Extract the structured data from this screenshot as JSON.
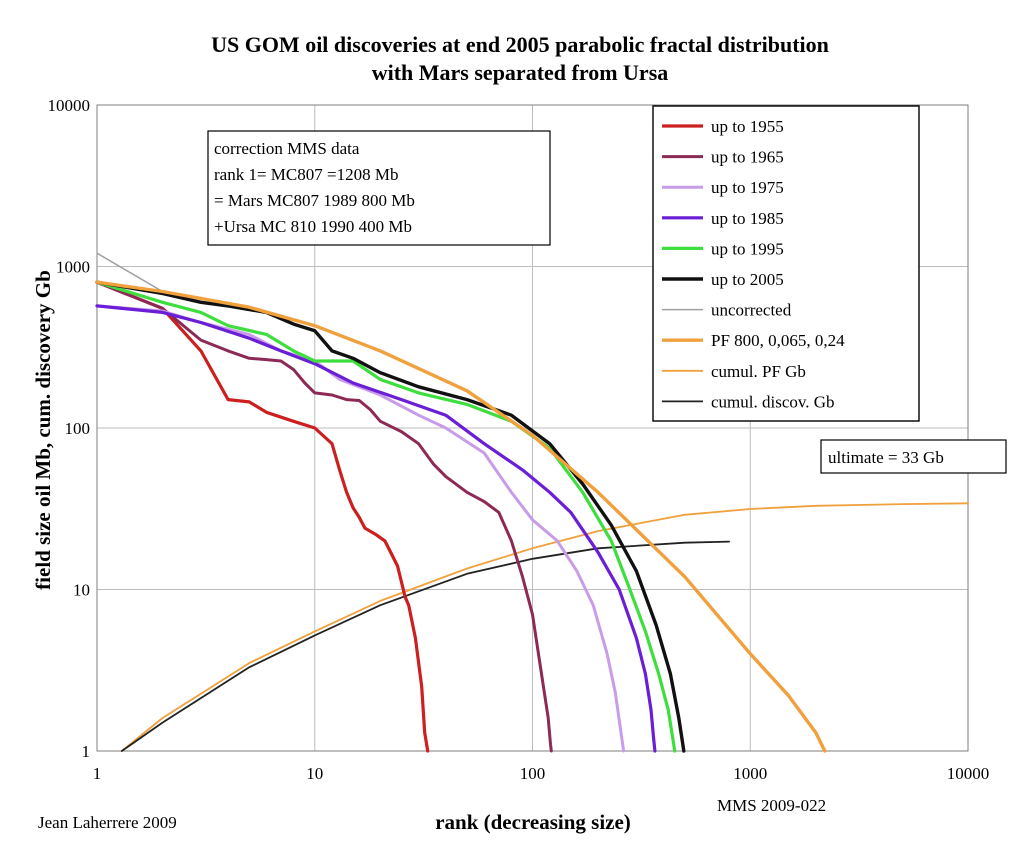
{
  "chart_data": {
    "type": "line",
    "title_lines": [
      "US GOM oil discoveries at end 2005 parabolic fractal distribution",
      "with Mars separated from Ursa"
    ],
    "xlabel": "rank (decreasing size)",
    "ylabel": "field size oil Mb, cum. discovery Gb",
    "x_scale": "log",
    "y_scale": "log",
    "xlim": [
      1,
      10000
    ],
    "ylim": [
      1,
      10000
    ],
    "x_ticks": [
      1,
      10,
      100,
      1000,
      10000
    ],
    "y_ticks": [
      1,
      10,
      100,
      1000,
      10000
    ],
    "x_tick_labels": [
      "1",
      "10",
      "100",
      "1000",
      "10000"
    ],
    "y_tick_labels": [
      "1",
      "10",
      "100",
      "1000",
      "10000"
    ],
    "grid": true,
    "legend_position": "top-right",
    "annotation_box": {
      "lines": [
        "correction MMS data",
        "rank 1= MC807 =1208 Mb",
        "= Mars MC807 1989 800 Mb",
        "+Ursa MC 810 1990 400 Mb"
      ]
    },
    "ultimate_box": "ultimate = 33 Gb",
    "credit_left": "Jean Laherrere 2009",
    "credit_right": "MMS 2009-022",
    "series": [
      {
        "name": "up to 1955",
        "color": "#cc1f1f",
        "width": 3.2,
        "points": [
          [
            1,
            800
          ],
          [
            2,
            550
          ],
          [
            3,
            300
          ],
          [
            4,
            150
          ],
          [
            5,
            145
          ],
          [
            6,
            125
          ],
          [
            8,
            110
          ],
          [
            10,
            100
          ],
          [
            12,
            80
          ],
          [
            13,
            55
          ],
          [
            14,
            40
          ],
          [
            15,
            32
          ],
          [
            16,
            28
          ],
          [
            17,
            24
          ],
          [
            19,
            22
          ],
          [
            21,
            20
          ],
          [
            24,
            14
          ],
          [
            26,
            9
          ],
          [
            27,
            8
          ],
          [
            29,
            5
          ],
          [
            31,
            2.5
          ],
          [
            32,
            1.3
          ],
          [
            33,
            1
          ]
        ]
      },
      {
        "name": "up to 1965",
        "color": "#8c2a55",
        "width": 3,
        "points": [
          [
            1,
            800
          ],
          [
            2,
            550
          ],
          [
            3,
            350
          ],
          [
            4,
            300
          ],
          [
            5,
            270
          ],
          [
            6,
            265
          ],
          [
            7,
            260
          ],
          [
            8,
            230
          ],
          [
            9,
            190
          ],
          [
            10,
            165
          ],
          [
            12,
            160
          ],
          [
            14,
            150
          ],
          [
            16,
            148
          ],
          [
            18,
            130
          ],
          [
            20,
            110
          ],
          [
            25,
            95
          ],
          [
            30,
            80
          ],
          [
            35,
            60
          ],
          [
            40,
            50
          ],
          [
            50,
            40
          ],
          [
            60,
            35
          ],
          [
            70,
            30
          ],
          [
            80,
            20
          ],
          [
            90,
            12
          ],
          [
            100,
            7
          ],
          [
            110,
            3
          ],
          [
            118,
            1.6
          ],
          [
            121,
            1.1
          ],
          [
            122,
            1
          ]
        ]
      },
      {
        "name": "up to 1975",
        "color": "#c99ce9",
        "width": 3,
        "points": [
          [
            1,
            570
          ],
          [
            2,
            530
          ],
          [
            3,
            450
          ],
          [
            5,
            380
          ],
          [
            7,
            300
          ],
          [
            10,
            260
          ],
          [
            13,
            200
          ],
          [
            20,
            160
          ],
          [
            30,
            120
          ],
          [
            40,
            100
          ],
          [
            60,
            70
          ],
          [
            80,
            40
          ],
          [
            100,
            27
          ],
          [
            130,
            20
          ],
          [
            160,
            13
          ],
          [
            190,
            8
          ],
          [
            220,
            4
          ],
          [
            240,
            2.3
          ],
          [
            255,
            1.3
          ],
          [
            262,
            1
          ]
        ]
      },
      {
        "name": "up to 1985",
        "color": "#6a1ed6",
        "width": 3.2,
        "points": [
          [
            1,
            570
          ],
          [
            2,
            520
          ],
          [
            3,
            450
          ],
          [
            5,
            360
          ],
          [
            7,
            300
          ],
          [
            10,
            250
          ],
          [
            15,
            190
          ],
          [
            25,
            150
          ],
          [
            40,
            120
          ],
          [
            60,
            80
          ],
          [
            90,
            55
          ],
          [
            120,
            40
          ],
          [
            150,
            30
          ],
          [
            200,
            17
          ],
          [
            250,
            10
          ],
          [
            300,
            5
          ],
          [
            330,
            3
          ],
          [
            350,
            1.8
          ],
          [
            360,
            1.2
          ],
          [
            365,
            1
          ]
        ]
      },
      {
        "name": "up to 1995",
        "color": "#3fde3f",
        "width": 3.2,
        "points": [
          [
            1,
            800
          ],
          [
            2,
            600
          ],
          [
            3,
            520
          ],
          [
            4,
            430
          ],
          [
            6,
            380
          ],
          [
            8,
            300
          ],
          [
            10,
            260
          ],
          [
            15,
            260
          ],
          [
            20,
            200
          ],
          [
            30,
            165
          ],
          [
            50,
            140
          ],
          [
            80,
            110
          ],
          [
            120,
            75
          ],
          [
            170,
            40
          ],
          [
            230,
            20
          ],
          [
            280,
            10
          ],
          [
            330,
            5.5
          ],
          [
            380,
            3
          ],
          [
            420,
            1.8
          ],
          [
            445,
            1.1
          ],
          [
            450,
            1
          ]
        ]
      },
      {
        "name": "up to 2005",
        "color": "#111111",
        "width": 3.4,
        "points": [
          [
            1,
            800
          ],
          [
            2,
            680
          ],
          [
            3,
            600
          ],
          [
            4,
            570
          ],
          [
            6,
            520
          ],
          [
            8,
            440
          ],
          [
            10,
            400
          ],
          [
            12,
            300
          ],
          [
            15,
            270
          ],
          [
            20,
            220
          ],
          [
            30,
            180
          ],
          [
            50,
            150
          ],
          [
            80,
            120
          ],
          [
            120,
            80
          ],
          [
            170,
            45
          ],
          [
            230,
            25
          ],
          [
            300,
            13
          ],
          [
            370,
            6
          ],
          [
            430,
            3
          ],
          [
            470,
            1.6
          ],
          [
            490,
            1.1
          ],
          [
            495,
            1
          ]
        ]
      },
      {
        "name": "uncorrected",
        "color": "#a0a0a0",
        "width": 1.5,
        "points": [
          [
            1,
            1208
          ],
          [
            2,
            700
          ],
          [
            3,
            600
          ],
          [
            4,
            570
          ],
          [
            6,
            520
          ],
          [
            8,
            440
          ],
          [
            10,
            400
          ],
          [
            12,
            300
          ],
          [
            15,
            270
          ],
          [
            20,
            220
          ],
          [
            30,
            180
          ],
          [
            50,
            150
          ],
          [
            80,
            120
          ],
          [
            120,
            80
          ],
          [
            170,
            45
          ],
          [
            230,
            25
          ],
          [
            300,
            13
          ],
          [
            370,
            6
          ],
          [
            430,
            3
          ],
          [
            470,
            1.6
          ],
          [
            495,
            1
          ]
        ]
      },
      {
        "name": "PF 800, 0,065, 0,24",
        "color": "#f0a03c",
        "width": 3.4,
        "points": [
          [
            1,
            800
          ],
          [
            2,
            700
          ],
          [
            5,
            560
          ],
          [
            10,
            430
          ],
          [
            20,
            300
          ],
          [
            50,
            170
          ],
          [
            100,
            90
          ],
          [
            200,
            40
          ],
          [
            500,
            12
          ],
          [
            1000,
            4
          ],
          [
            1500,
            2.2
          ],
          [
            2000,
            1.3
          ],
          [
            2200,
            1
          ]
        ]
      },
      {
        "name": "cumul. PF Gb",
        "color": "#f0a03c",
        "width": 1.8,
        "points": [
          [
            1.3,
            1
          ],
          [
            2,
            1.6
          ],
          [
            5,
            3.5
          ],
          [
            10,
            5.5
          ],
          [
            20,
            8.5
          ],
          [
            50,
            13.5
          ],
          [
            100,
            18
          ],
          [
            200,
            23
          ],
          [
            500,
            29
          ],
          [
            1000,
            31.5
          ],
          [
            2000,
            33
          ],
          [
            5000,
            33.8
          ],
          [
            10000,
            34.2
          ]
        ]
      },
      {
        "name": "cumul. discov. Gb",
        "color": "#222222",
        "width": 1.8,
        "points": [
          [
            1.3,
            1
          ],
          [
            2,
            1.5
          ],
          [
            5,
            3.3
          ],
          [
            10,
            5.2
          ],
          [
            20,
            8
          ],
          [
            50,
            12.5
          ],
          [
            100,
            15.5
          ],
          [
            200,
            18
          ],
          [
            500,
            19.5
          ],
          [
            800,
            19.8
          ]
        ]
      }
    ]
  }
}
